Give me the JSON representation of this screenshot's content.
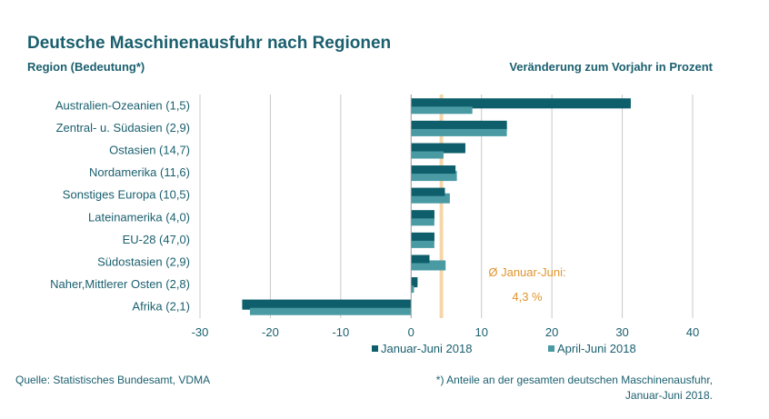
{
  "header": {
    "title": "Deutsche Maschinenausfuhr nach Regionen",
    "left_subtitle": "Region (Bedeutung*)",
    "right_subtitle": "Veränderung zum Vorjahr in Prozent"
  },
  "footer": {
    "source": "Quelle: Statistisches Bundesamt, VDMA",
    "note_line1": "*) Anteile an der gesamten deutschen Maschinenausfuhr,",
    "note_line2": "Januar-Juni 2018."
  },
  "colors": {
    "series1": "#0e5f6b",
    "series2": "#4a9aa4",
    "avg_line": "#f5d6a8",
    "annotation": "#e0952e",
    "text": "#1a5f6e",
    "grid": "#c8c8c8"
  },
  "chart_data": {
    "type": "bar",
    "orientation": "horizontal",
    "categories": [
      "Australien-Ozeanien (1,5)",
      "Zentral- u. Südasien (2,9)",
      "Ostasien (14,7)",
      "Nordamerika (11,6)",
      "Sonstiges Europa (10,5)",
      "Lateinamerika (4,0)",
      "EU-28 (47,0)",
      "Südostasien (2,9)",
      "Naher,Mittlerer Osten (2,8)",
      "Afrika (2,1)"
    ],
    "series": [
      {
        "name": "Januar-Juni 2018",
        "values": [
          31.2,
          13.6,
          7.7,
          6.3,
          4.8,
          3.3,
          3.3,
          2.6,
          0.9,
          -24.0
        ]
      },
      {
        "name": "April-Juni 2018",
        "values": [
          8.7,
          13.6,
          4.6,
          6.5,
          5.5,
          3.3,
          3.3,
          4.9,
          0.4,
          -22.9
        ]
      }
    ],
    "xlim": [
      -30,
      40
    ],
    "x_ticks": [
      "-30",
      "-20",
      "-10",
      "0",
      "10",
      "20",
      "30",
      "40"
    ],
    "grid": true,
    "legend_position": "bottom",
    "average_line": {
      "value": 4.3,
      "label_line1": "Ø Januar-Juni:",
      "label_line2": "4,3 %"
    }
  }
}
